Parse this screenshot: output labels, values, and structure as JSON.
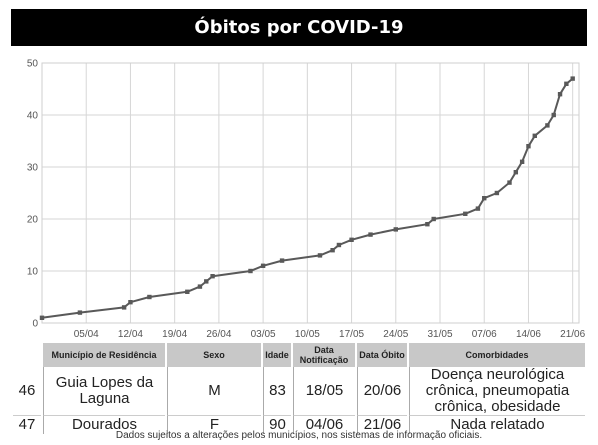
{
  "title": "Óbitos por COVID-19",
  "chart_data": {
    "type": "line",
    "ylim": [
      0,
      50
    ],
    "yticks": [
      0,
      10,
      20,
      30,
      40,
      50
    ],
    "xlim": [
      "2020-03-29",
      "2020-06-22"
    ],
    "xticks": [
      "05/04",
      "12/04",
      "19/04",
      "26/04",
      "03/05",
      "10/05",
      "17/05",
      "24/05",
      "31/05",
      "07/06",
      "14/06",
      "21/06"
    ],
    "grid": true,
    "series": [
      {
        "color": "#595959",
        "points": [
          {
            "x": "2020-03-29",
            "y": 1
          },
          {
            "x": "2020-04-04",
            "y": 2
          },
          {
            "x": "2020-04-11",
            "y": 3
          },
          {
            "x": "2020-04-12",
            "y": 4
          },
          {
            "x": "2020-04-15",
            "y": 5
          },
          {
            "x": "2020-04-21",
            "y": 6
          },
          {
            "x": "2020-04-23",
            "y": 7
          },
          {
            "x": "2020-04-24",
            "y": 8
          },
          {
            "x": "2020-04-25",
            "y": 9
          },
          {
            "x": "2020-05-01",
            "y": 10
          },
          {
            "x": "2020-05-03",
            "y": 11
          },
          {
            "x": "2020-05-06",
            "y": 12
          },
          {
            "x": "2020-05-12",
            "y": 13
          },
          {
            "x": "2020-05-14",
            "y": 14
          },
          {
            "x": "2020-05-15",
            "y": 15
          },
          {
            "x": "2020-05-17",
            "y": 16
          },
          {
            "x": "2020-05-20",
            "y": 17
          },
          {
            "x": "2020-05-24",
            "y": 18
          },
          {
            "x": "2020-05-29",
            "y": 19
          },
          {
            "x": "2020-05-30",
            "y": 20
          },
          {
            "x": "2020-06-04",
            "y": 21
          },
          {
            "x": "2020-06-06",
            "y": 22
          },
          {
            "x": "2020-06-07",
            "y": 24
          },
          {
            "x": "2020-06-09",
            "y": 25
          },
          {
            "x": "2020-06-11",
            "y": 27
          },
          {
            "x": "2020-06-12",
            "y": 29
          },
          {
            "x": "2020-06-13",
            "y": 31
          },
          {
            "x": "2020-06-14",
            "y": 34
          },
          {
            "x": "2020-06-15",
            "y": 36
          },
          {
            "x": "2020-06-17",
            "y": 38
          },
          {
            "x": "2020-06-18",
            "y": 40
          },
          {
            "x": "2020-06-19",
            "y": 44
          },
          {
            "x": "2020-06-20",
            "y": 46
          },
          {
            "x": "2020-06-21",
            "y": 47
          }
        ]
      }
    ]
  },
  "table": {
    "headers": [
      "Município de Residência",
      "Sexo",
      "Idade",
      "Data Notificação",
      "Data Óbito",
      "Comorbidades"
    ],
    "rows": [
      {
        "num": "46",
        "municipio": "Guia Lopes da Laguna",
        "sexo": "M",
        "idade": "83",
        "notificacao": "18/05",
        "obito": "20/06",
        "comorbidades": "Doença neurológica crônica, pneumopatia crônica, obesidade"
      },
      {
        "num": "47",
        "municipio": "Dourados",
        "sexo": "F",
        "idade": "90",
        "notificacao": "04/06",
        "obito": "21/06",
        "comorbidades": "Nada relatado"
      }
    ]
  },
  "footer": "Dados sujeitos a alterações pelos municípios, nos sistemas de informação oficiais."
}
